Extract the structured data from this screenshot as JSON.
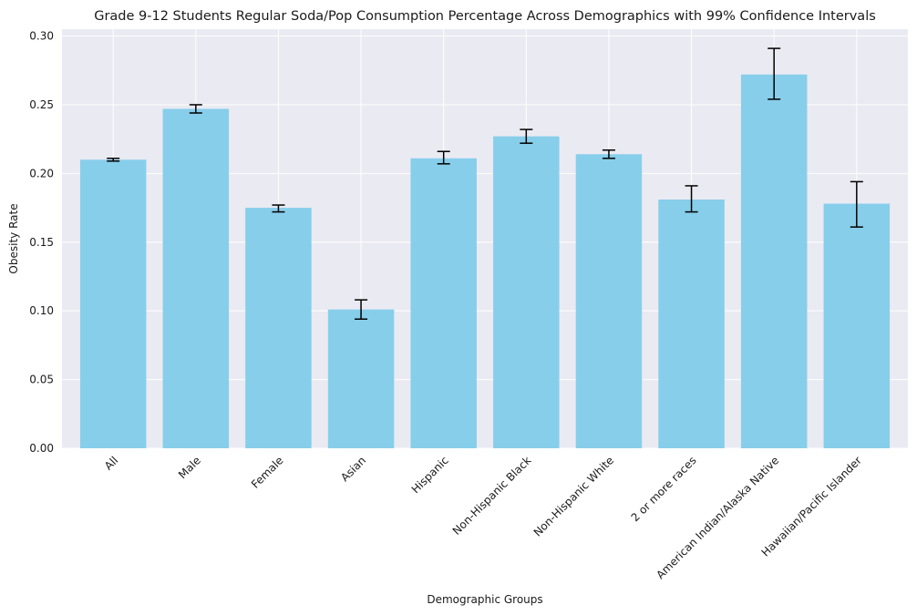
{
  "chart_data": {
    "type": "bar",
    "title": "Grade 9-12 Students Regular Soda/Pop Consumption Percentage Across Demographics with 99% Confidence Intervals",
    "xlabel": "Demographic Groups",
    "ylabel": "Obesity Rate",
    "ylim": [
      0,
      0.305
    ],
    "yticks": [
      "0.00",
      "0.05",
      "0.10",
      "0.15",
      "0.20",
      "0.25",
      "0.30"
    ],
    "grid": true,
    "categories": [
      "All",
      "Male",
      "Female",
      "Asian",
      "Hispanic",
      "Non-Hispanic Black",
      "Non-Hispanic White",
      "2 or more races",
      "American Indian/Alaska Native",
      "Hawaiian/Pacific Islander"
    ],
    "values": [
      0.21,
      0.247,
      0.175,
      0.101,
      0.211,
      0.227,
      0.214,
      0.181,
      0.272,
      0.178
    ],
    "ci_lower": [
      0.209,
      0.244,
      0.172,
      0.094,
      0.207,
      0.222,
      0.211,
      0.172,
      0.254,
      0.161
    ],
    "ci_upper": [
      0.211,
      0.25,
      0.177,
      0.108,
      0.216,
      0.232,
      0.217,
      0.191,
      0.291,
      0.194
    ],
    "colors": {
      "bar": "#87ceeb",
      "background": "#eaeaf2",
      "grid": "#ffffff",
      "errorbar": "#000000"
    }
  }
}
